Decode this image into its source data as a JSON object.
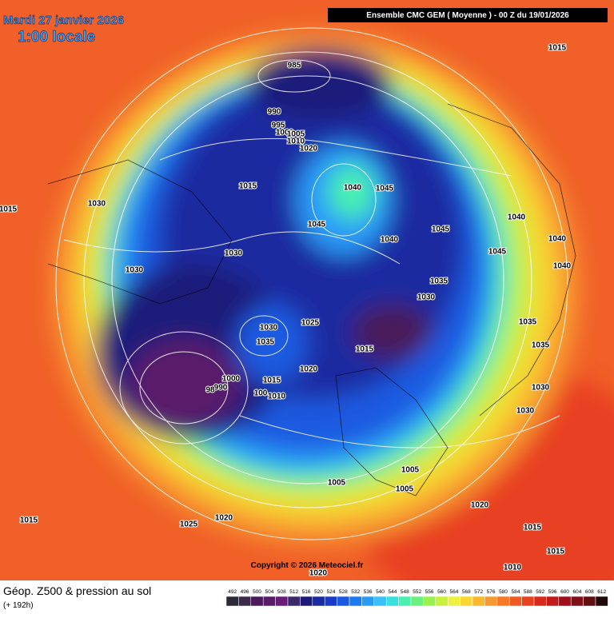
{
  "header": {
    "date": "Mardi 27 janvier 2026",
    "time": "1:00 locale",
    "model": "Ensemble CMC GEM  ( Moyenne )  -  00 Z du 19/01/2026"
  },
  "footer": {
    "title": "Géop. Z500 & pression au sol",
    "subtitle": "(+ 192h)",
    "copyright": "Copyright © 2026 Meteociel.fr"
  },
  "isobar_labels": [
    "985",
    "1015",
    "990",
    "995",
    "1000",
    "1005",
    "1010",
    "1020",
    "1015",
    "1015",
    "1030",
    "1040",
    "1045",
    "1045",
    "1040",
    "1045",
    "1040",
    "1040",
    "1045",
    "1040",
    "1030",
    "1030",
    "1035",
    "1030",
    "1030",
    "1025",
    "1035",
    "1015",
    "1020",
    "1035",
    "1035",
    "1030",
    "1030",
    "1015",
    "990",
    "98",
    "1000",
    "100",
    "1010",
    "1005",
    "1005",
    "1005",
    "1020",
    "1015",
    "1025",
    "1020",
    "1015",
    "1015",
    "1010",
    "1020"
  ],
  "scale": {
    "labels": [
      492,
      496,
      500,
      504,
      508,
      512,
      516,
      520,
      524,
      528,
      532,
      536,
      540,
      544,
      548,
      552,
      556,
      560,
      564,
      568,
      572,
      576,
      580,
      584,
      588,
      592,
      596,
      600,
      604,
      608,
      612
    ],
    "colors": [
      "#2a2a3a",
      "#3c2a4a",
      "#4a1a5a",
      "#5a1a6a",
      "#6a1a7a",
      "#3a2a6a",
      "#1a1a7a",
      "#1a2aa0",
      "#1a3ac8",
      "#1a5ae0",
      "#1a7af0",
      "#2a9af8",
      "#3ac0f8",
      "#3ae0e0",
      "#4af0b0",
      "#6af080",
      "#9af050",
      "#c8f040",
      "#f0f040",
      "#f8d830",
      "#f8b830",
      "#f89830",
      "#f87828",
      "#f05a20",
      "#e84020",
      "#d82a1a",
      "#c01a1a",
      "#a0101a",
      "#801018",
      "#601010",
      "#200808"
    ]
  }
}
